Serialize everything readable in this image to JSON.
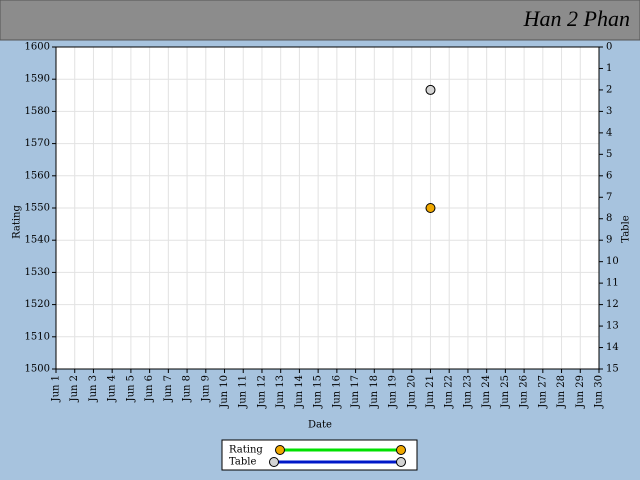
{
  "chart_data": {
    "type": "scatter",
    "title": "Han 2 Phan",
    "x_label": "Date",
    "y_label": "Rating",
    "y2_label": "Table",
    "categories": [
      "Jun 1",
      "Jun 2",
      "Jun 3",
      "Jun 4",
      "Jun 5",
      "Jun 6",
      "Jun 7",
      "Jun 8",
      "Jun 9",
      "Jun 10",
      "Jun 11",
      "Jun 12",
      "Jun 13",
      "Jun 14",
      "Jun 15",
      "Jun 16",
      "Jun 17",
      "Jun 18",
      "Jun 19",
      "Jun 20",
      "Jun 21",
      "Jun 22",
      "Jun 23",
      "Jun 24",
      "Jun 25",
      "Jun 26",
      "Jun 27",
      "Jun 28",
      "Jun 29",
      "Jun 30"
    ],
    "series": [
      {
        "name": "Rating",
        "color": "#00e000",
        "marker_color": "#f0a800",
        "values": [
          null,
          null,
          null,
          null,
          null,
          null,
          null,
          null,
          null,
          null,
          null,
          null,
          null,
          null,
          null,
          null,
          null,
          null,
          null,
          null,
          1550,
          null,
          null,
          null,
          null,
          null,
          null,
          null,
          null,
          null
        ]
      },
      {
        "name": "Table",
        "color": "#0018c8",
        "marker_color": "#d4d4d4",
        "axis": "y2",
        "values": [
          null,
          null,
          null,
          null,
          null,
          null,
          null,
          null,
          null,
          null,
          null,
          null,
          null,
          null,
          null,
          null,
          null,
          null,
          null,
          null,
          2,
          null,
          null,
          null,
          null,
          null,
          null,
          null,
          null,
          null
        ]
      }
    ],
    "ylim": [
      1500,
      1600
    ],
    "yticks": [
      1500,
      1510,
      1520,
      1530,
      1540,
      1550,
      1560,
      1570,
      1580,
      1590,
      1600
    ],
    "y2lim": [
      15,
      0
    ],
    "y2ticks": [
      0,
      1,
      2,
      3,
      4,
      5,
      6,
      7,
      8,
      9,
      10,
      11,
      12,
      13,
      14,
      15
    ],
    "grid": true
  }
}
